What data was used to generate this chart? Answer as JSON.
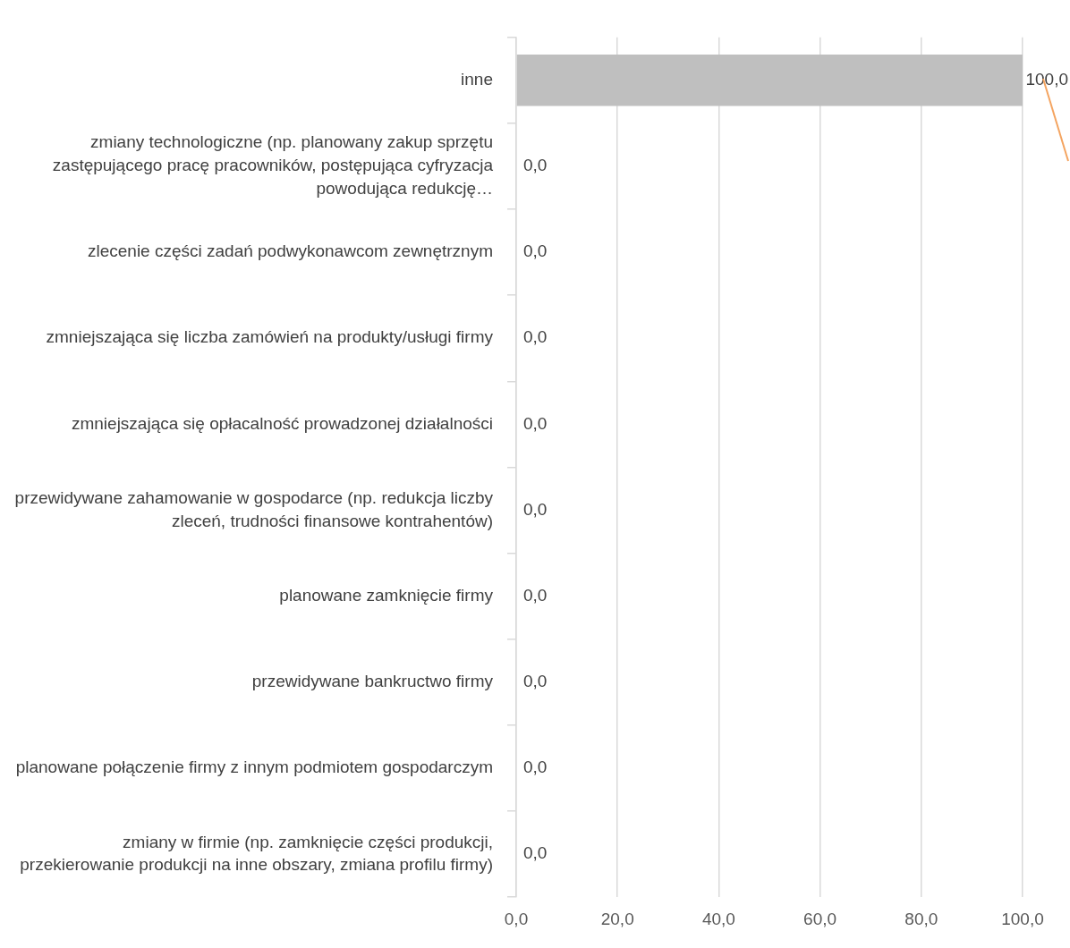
{
  "chart_data": {
    "type": "bar",
    "orientation": "horizontal",
    "categories": [
      "inne",
      "zmiany technologiczne (np. planowany zakup sprzętu zastępującego pracę pracowników, postępująca cyfryzacja powodująca redukcję…",
      "zlecenie części zadań podwykonawcom zewnętrznym",
      "zmniejszająca się liczba zamówień na produkty/usługi firmy",
      "zmniejszająca się opłacalność prowadzonej działalności",
      "przewidywane zahamowanie w gospodarce (np. redukcja liczby zleceń, trudności finansowe kontrahentów)",
      "planowane zamknięcie firmy",
      "przewidywane bankructwo firmy",
      "planowane połączenie firmy z innym podmiotem gospodarczym",
      "zmiany w firmie (np. zamknięcie części produkcji, przekierowanie produkcji na inne obszary, zmiana profilu firmy)"
    ],
    "values": [
      100,
      0,
      0,
      0,
      0,
      0,
      0,
      0,
      0,
      0
    ],
    "value_labels": [
      "100,0",
      "0,0",
      "0,0",
      "0,0",
      "0,0",
      "0,0",
      "0,0",
      "0,0",
      "0,0",
      "0,0"
    ],
    "color": "#bfbfbf",
    "xlim": [
      0,
      100
    ],
    "xticks": [
      {
        "value": 0,
        "label": "0,0"
      },
      {
        "value": 20,
        "label": "20,0"
      },
      {
        "value": 40,
        "label": "40,0"
      },
      {
        "value": 60,
        "label": "60,0"
      },
      {
        "value": 80,
        "label": "80,0"
      },
      {
        "value": 100,
        "label": "100,0"
      }
    ],
    "grid": "x",
    "legend": false
  }
}
